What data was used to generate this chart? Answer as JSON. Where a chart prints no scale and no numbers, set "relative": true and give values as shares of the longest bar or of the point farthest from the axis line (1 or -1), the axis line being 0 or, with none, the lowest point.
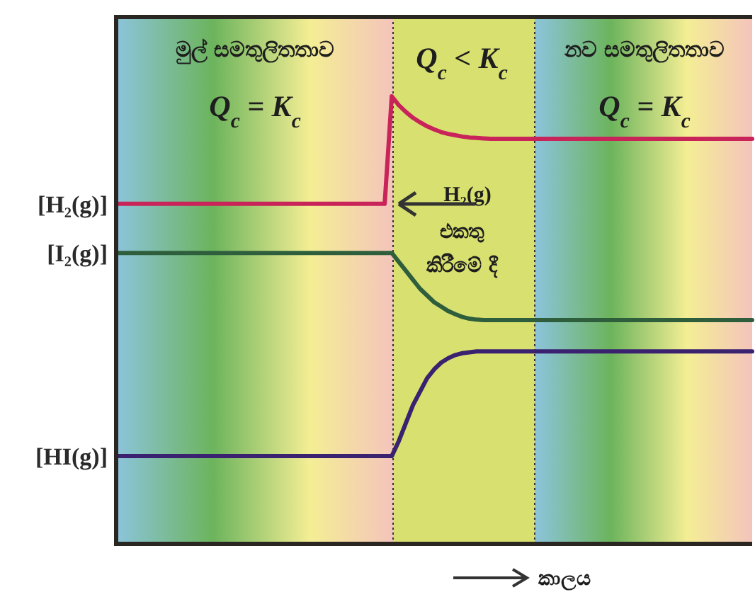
{
  "chart_data": {
    "type": "line",
    "relative": true,
    "marker": "none",
    "line_style": "solid",
    "xlabel": "කාලය",
    "categories": [
      null,
      null,
      null,
      null,
      null,
      null,
      null,
      null,
      null,
      null,
      null,
      null,
      null,
      null,
      null,
      null,
      null,
      null,
      null,
      null,
      null,
      null,
      null,
      null,
      null,
      null,
      null,
      null,
      null,
      null,
      null,
      null,
      null,
      null,
      null,
      null,
      null,
      null,
      null,
      null,
      null,
      null,
      null,
      null,
      null,
      null,
      null,
      null,
      null,
      null,
      null,
      null,
      null,
      null,
      null,
      null,
      null,
      null,
      null,
      null,
      null,
      null,
      null,
      null,
      null,
      null,
      null,
      null,
      null,
      null,
      null,
      null,
      null,
      null,
      null,
      null,
      null,
      null,
      null,
      null,
      null,
      null,
      null,
      null,
      null,
      null,
      null,
      null,
      null,
      null,
      null
    ],
    "series": [
      {
        "name": "[H₂(g)]",
        "color": "#c8245a",
        "values": [
          0.76,
          0.76,
          0.76,
          0.76,
          0.76,
          0.76,
          0.76,
          0.76,
          0.76,
          0.76,
          0.76,
          0.76,
          0.76,
          0.76,
          0.76,
          0.76,
          0.76,
          0.76,
          0.76,
          0.76,
          0.76,
          0.76,
          0.76,
          0.76,
          0.76,
          0.76,
          0.76,
          0.76,
          0.76,
          0.76,
          0.76,
          0.76,
          0.76,
          0.76,
          0.76,
          0.76,
          0.76,
          0.76,
          0.76,
          1.0,
          0.98,
          0.965,
          0.952,
          0.942,
          0.933,
          0.926,
          0.92,
          0.916,
          0.913,
          0.91,
          0.908,
          0.907,
          0.906,
          0.905,
          0.905,
          0.905,
          0.905,
          0.905,
          0.905,
          0.905,
          0.905,
          0.905,
          0.905,
          0.905,
          0.905,
          0.905,
          0.905,
          0.905,
          0.905,
          0.905,
          0.905,
          0.905,
          0.905,
          0.905,
          0.905,
          0.905,
          0.905,
          0.905,
          0.905,
          0.905,
          0.905,
          0.905,
          0.905,
          0.905,
          0.905,
          0.905,
          0.905,
          0.905,
          0.905,
          0.905,
          0.905
        ]
      },
      {
        "name": "[I₂(g)]",
        "color": "#2e5e3c",
        "values": [
          0.65,
          0.65,
          0.65,
          0.65,
          0.65,
          0.65,
          0.65,
          0.65,
          0.65,
          0.65,
          0.65,
          0.65,
          0.65,
          0.65,
          0.65,
          0.65,
          0.65,
          0.65,
          0.65,
          0.65,
          0.65,
          0.65,
          0.65,
          0.65,
          0.65,
          0.65,
          0.65,
          0.65,
          0.65,
          0.65,
          0.65,
          0.65,
          0.65,
          0.65,
          0.65,
          0.65,
          0.65,
          0.65,
          0.65,
          0.65,
          0.63,
          0.61,
          0.59,
          0.57,
          0.555,
          0.54,
          0.53,
          0.52,
          0.513,
          0.507,
          0.503,
          0.501,
          0.5,
          0.5,
          0.5,
          0.5,
          0.5,
          0.5,
          0.5,
          0.5,
          0.5,
          0.5,
          0.5,
          0.5,
          0.5,
          0.5,
          0.5,
          0.5,
          0.5,
          0.5,
          0.5,
          0.5,
          0.5,
          0.5,
          0.5,
          0.5,
          0.5,
          0.5,
          0.5,
          0.5,
          0.5,
          0.5,
          0.5,
          0.5,
          0.5,
          0.5,
          0.5,
          0.5,
          0.5,
          0.5,
          0.5
        ]
      },
      {
        "name": "[HI(g)]",
        "color": "#3a2270",
        "values": [
          0.196,
          0.196,
          0.196,
          0.196,
          0.196,
          0.196,
          0.196,
          0.196,
          0.196,
          0.196,
          0.196,
          0.196,
          0.196,
          0.196,
          0.196,
          0.196,
          0.196,
          0.196,
          0.196,
          0.196,
          0.196,
          0.196,
          0.196,
          0.196,
          0.196,
          0.196,
          0.196,
          0.196,
          0.196,
          0.196,
          0.196,
          0.196,
          0.196,
          0.196,
          0.196,
          0.196,
          0.196,
          0.196,
          0.196,
          0.196,
          0.23,
          0.27,
          0.31,
          0.34,
          0.37,
          0.39,
          0.405,
          0.415,
          0.422,
          0.426,
          0.428,
          0.43,
          0.43,
          0.43,
          0.43,
          0.43,
          0.43,
          0.43,
          0.43,
          0.43,
          0.43,
          0.43,
          0.43,
          0.43,
          0.43,
          0.43,
          0.43,
          0.43,
          0.43,
          0.43,
          0.43,
          0.43,
          0.43,
          0.43,
          0.43,
          0.43,
          0.43,
          0.43,
          0.43,
          0.43,
          0.43,
          0.43,
          0.43,
          0.43,
          0.43,
          0.43,
          0.43,
          0.43,
          0.43,
          0.43,
          0.43
        ]
      }
    ],
    "annotations": [
      "මුල් සමතුලිතතාව",
      "Q$_{c}$ = K$_{c}$",
      "Q$_{c}$ < K$_{c}$",
      "නව සමතුලිතතාව",
      "Q$_{c}$ = K$_{c}$",
      "H₂(g)",
      "එකතු",
      "කිරීමේ දී"
    ]
  }
}
